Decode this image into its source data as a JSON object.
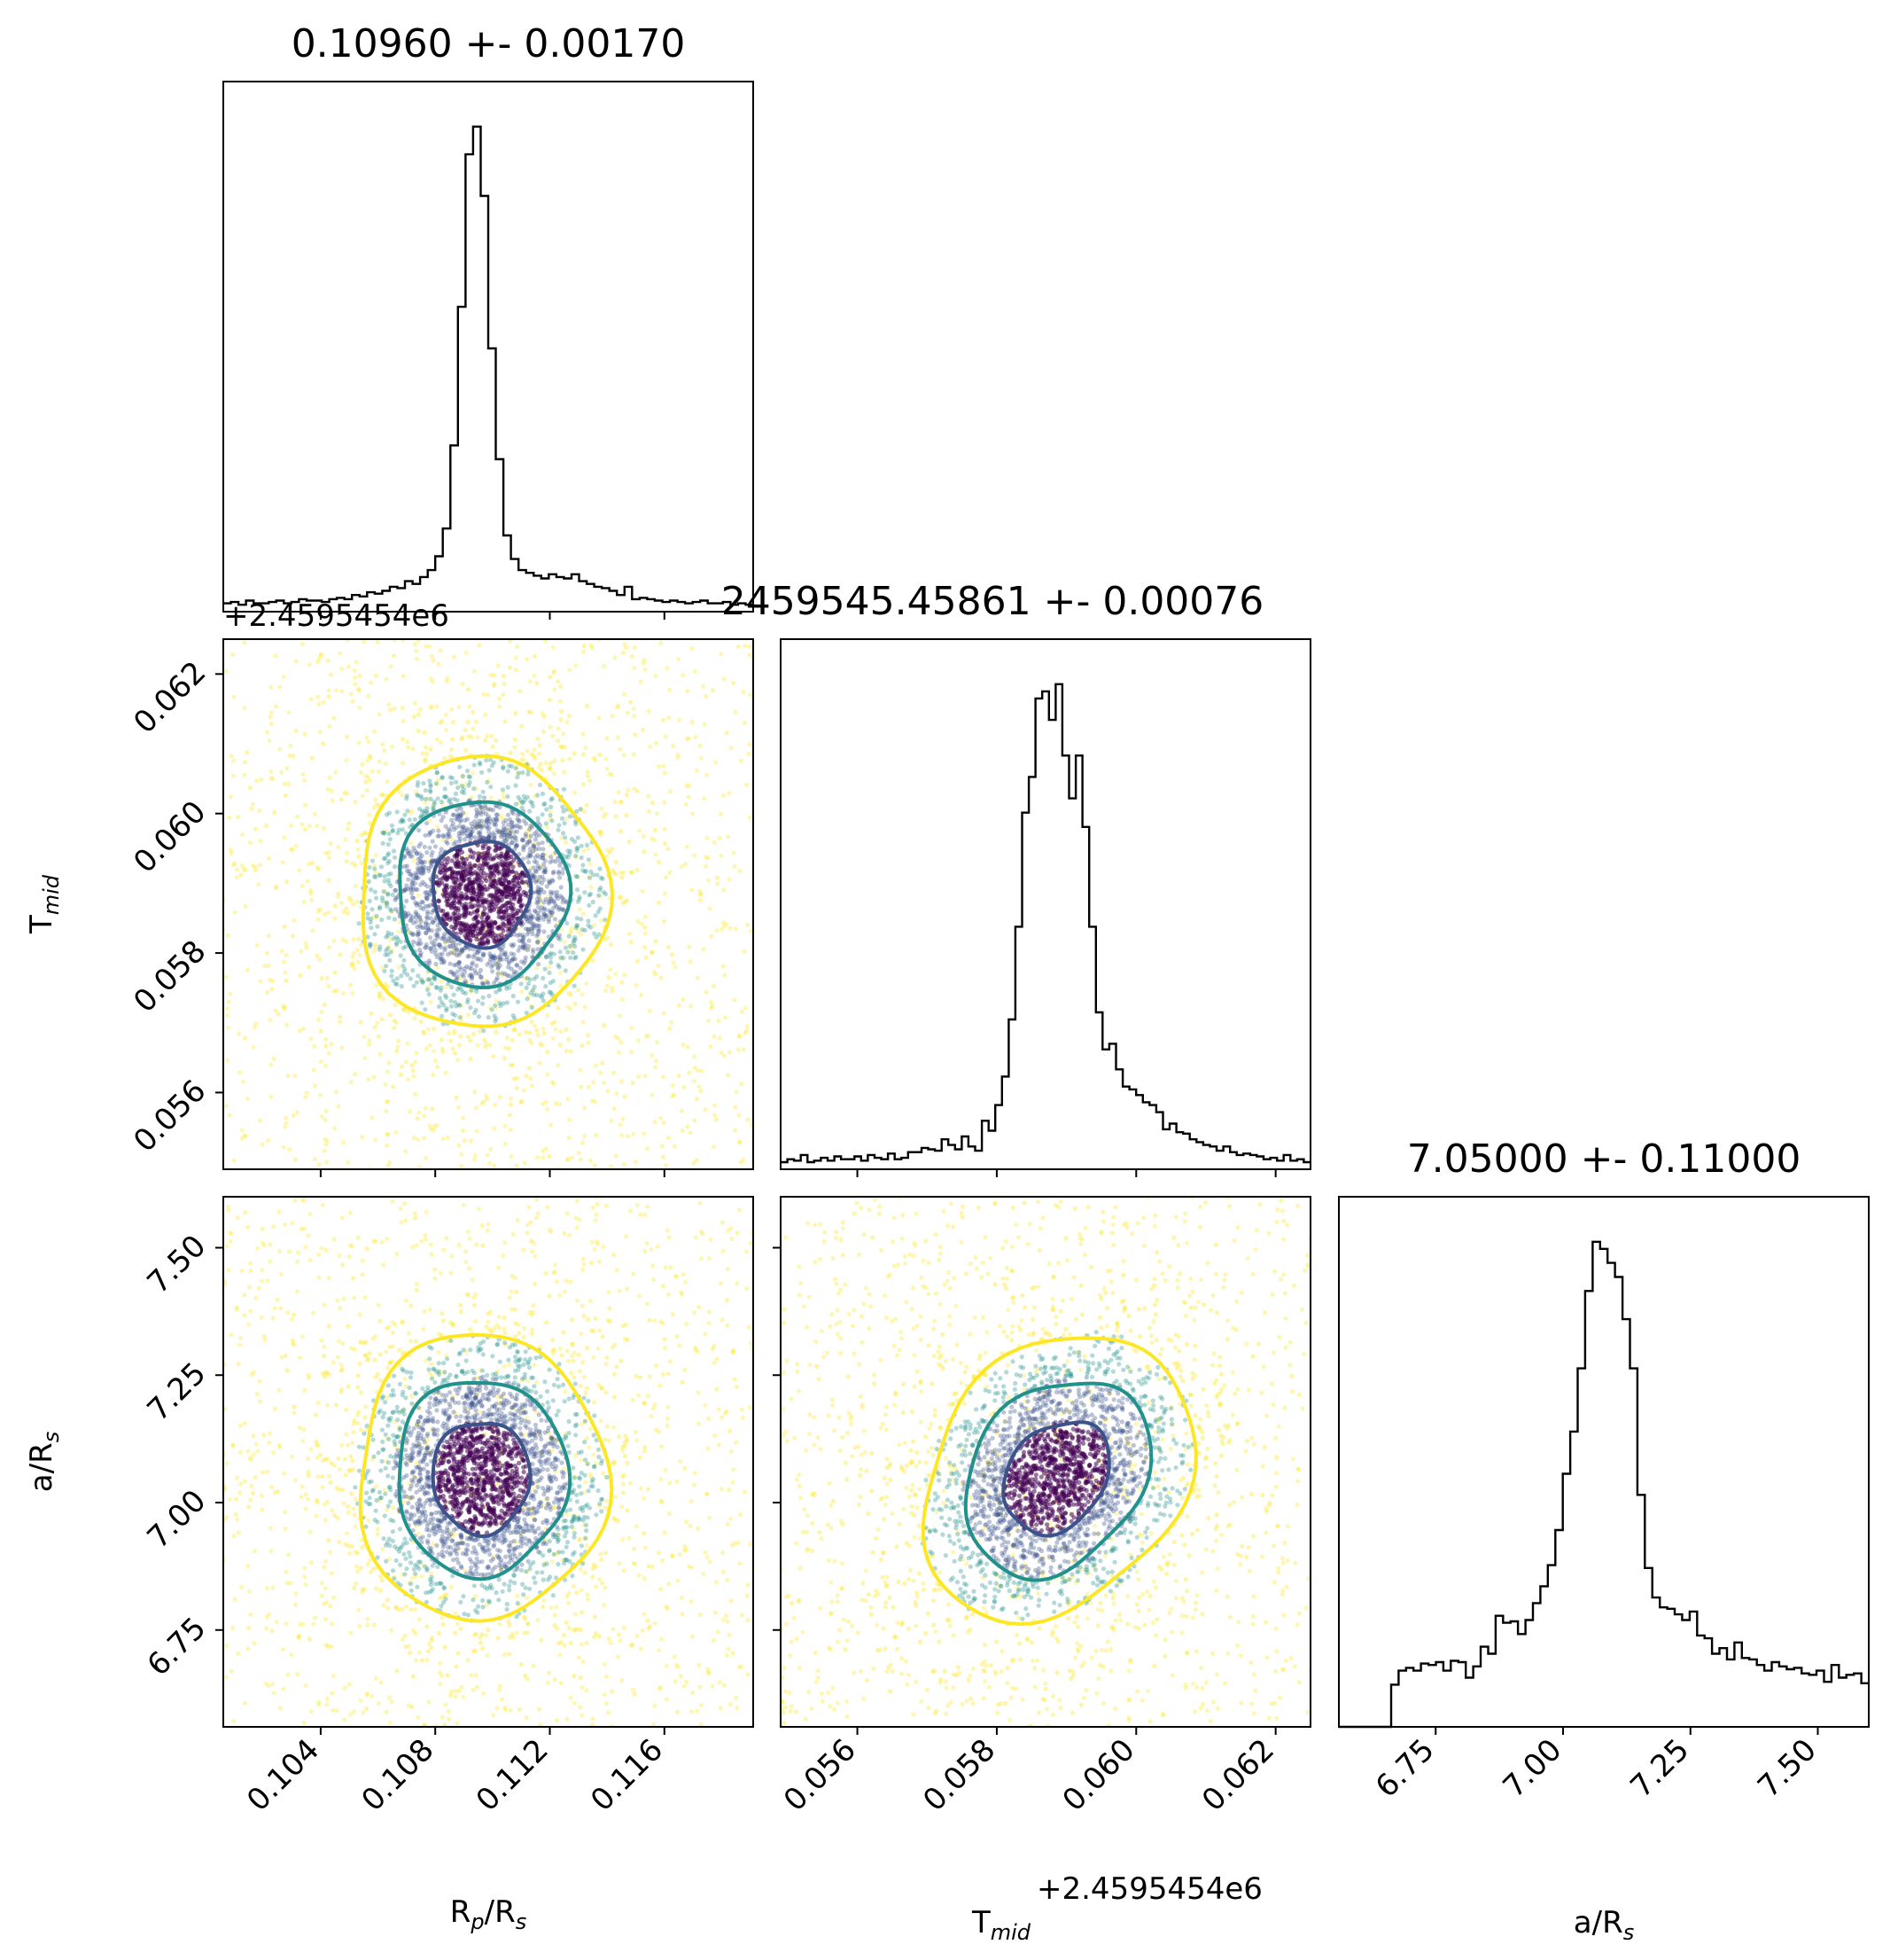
{
  "chart_data": {
    "type": "corner",
    "parameters": [
      {
        "key": "rp",
        "label": "R",
        "label_sub": "p",
        "label_tail": "/R",
        "label_sub2": "s",
        "title": "0.10960 +- 0.00170",
        "mean": 0.1096,
        "sigma": 0.0017,
        "range": [
          0.1006,
          0.1191
        ],
        "ticks": [
          "0.104",
          "0.108",
          "0.112",
          "0.116"
        ],
        "tick_values": [
          0.104,
          0.108,
          0.112,
          0.116
        ],
        "offset": ""
      },
      {
        "key": "tmid",
        "label": "T",
        "label_sub": "mid",
        "label_tail": "",
        "label_sub2": "",
        "title": "2459545.45861 +- 0.00076",
        "mean": 0.05886,
        "sigma": 0.00076,
        "range": [
          0.0549,
          0.0625
        ],
        "ticks": [
          "0.056",
          "0.058",
          "0.060",
          "0.062"
        ],
        "tick_values": [
          0.056,
          0.058,
          0.06,
          0.062
        ],
        "offset": "+2.4595454e6"
      },
      {
        "key": "ars",
        "label": "a/R",
        "label_sub": "s",
        "label_tail": "",
        "label_sub2": "",
        "title": "7.05000 +- 0.11000",
        "mean": 7.05,
        "sigma": 0.11,
        "range": [
          6.56,
          7.6
        ],
        "ticks": [
          "6.75",
          "7.00",
          "7.25",
          "7.50"
        ],
        "tick_values": [
          6.75,
          7.0,
          7.25,
          7.5
        ],
        "offset": ""
      }
    ],
    "histograms": [
      {
        "param": "rp",
        "bin_range": [
          0.1006,
          0.1191
        ],
        "counts": [
          6,
          7,
          5,
          8,
          6,
          6,
          7,
          8,
          6,
          7,
          9,
          8,
          8,
          7,
          9,
          10,
          9,
          12,
          11,
          14,
          13,
          15,
          18,
          17,
          22,
          20,
          25,
          30,
          40,
          60,
          120,
          220,
          330,
          350,
          300,
          190,
          110,
          55,
          38,
          30,
          28,
          26,
          24,
          27,
          25,
          24,
          27,
          22,
          20,
          18,
          17,
          15,
          12,
          18,
          9,
          10,
          9,
          8,
          7,
          8,
          7,
          6,
          7,
          8,
          6,
          6,
          7,
          5,
          6,
          5
        ]
      },
      {
        "param": "tmid",
        "bin_range": [
          0.0549,
          0.0625
        ],
        "counts": [
          5,
          7,
          6,
          10,
          5,
          6,
          8,
          6,
          9,
          7,
          7,
          9,
          6,
          10,
          8,
          7,
          11,
          7,
          8,
          12,
          12,
          15,
          14,
          13,
          21,
          17,
          14,
          23,
          16,
          13,
          34,
          27,
          45,
          65,
          105,
          170,
          250,
          275,
          330,
          335,
          315,
          340,
          290,
          260,
          290,
          240,
          170,
          110,
          84,
          88,
          70,
          58,
          56,
          52,
          47,
          45,
          40,
          28,
          32,
          26,
          25,
          21,
          19,
          17,
          16,
          13,
          16,
          12,
          10,
          11,
          10,
          9,
          7,
          8,
          6,
          10,
          6,
          7,
          5
        ]
      },
      {
        "param": "ars",
        "bin_range": [
          6.56,
          7.6
        ],
        "counts": [
          0,
          0,
          0,
          0,
          0,
          0,
          0,
          30,
          40,
          42,
          40,
          45,
          44,
          46,
          40,
          47,
          46,
          35,
          43,
          57,
          52,
          79,
          74,
          75,
          66,
          76,
          88,
          100,
          115,
          140,
          180,
          210,
          255,
          310,
          345,
          340,
          330,
          320,
          290,
          255,
          165,
          113,
          92,
          85,
          84,
          80,
          76,
          82,
          65,
          63,
          52,
          56,
          48,
          60,
          49,
          48,
          44,
          40,
          46,
          43,
          41,
          42,
          38,
          37,
          40,
          32,
          44,
          35,
          37,
          38,
          31
        ]
      }
    ],
    "pairs": [
      {
        "x": "rp",
        "y": "tmid",
        "rho": 0.0
      },
      {
        "x": "rp",
        "y": "ars",
        "rho": 0.0
      },
      {
        "x": "tmid",
        "y": "ars",
        "rho": 0.25
      }
    ],
    "contour_levels_sigma": [
      1,
      2,
      3
    ],
    "colors": {
      "outer_contour": "#fde725",
      "middle_contour": "#21918c",
      "inner_contour": "#3b528b",
      "core": "#440154",
      "histogram_line": "#000000"
    }
  }
}
